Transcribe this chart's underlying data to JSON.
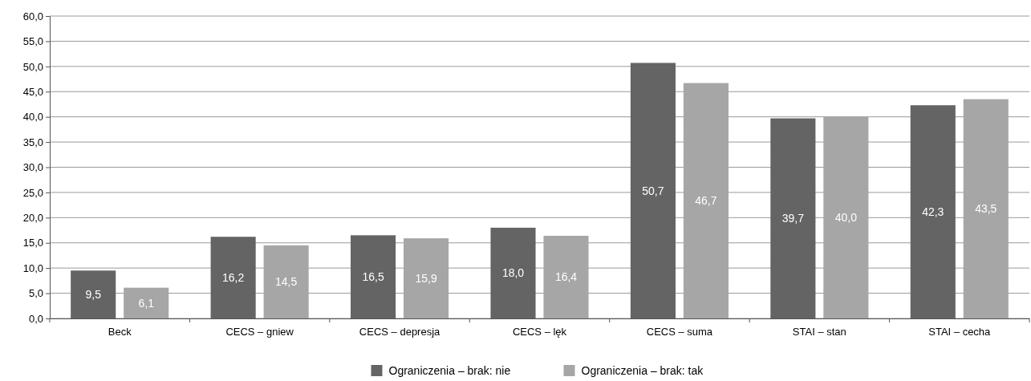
{
  "chart_data": {
    "type": "bar",
    "categories": [
      "Beck",
      "CECS – gniew",
      "CECS – depresja",
      "CECS – lęk",
      "CECS – suma",
      "STAI – stan",
      "STAI – cecha"
    ],
    "series": [
      {
        "name": "Ograniczenia – brak: nie",
        "color": "#646464",
        "values": [
          9.5,
          16.2,
          16.5,
          18.0,
          50.7,
          39.7,
          42.3
        ],
        "value_labels": [
          "9,5",
          "16,2",
          "16,5",
          "18,0",
          "50,7",
          "39,7",
          "42,3"
        ]
      },
      {
        "name": "Ograniczenia – brak: tak",
        "color": "#a6a6a6",
        "values": [
          6.1,
          14.5,
          15.9,
          16.4,
          46.7,
          40.0,
          43.5
        ],
        "value_labels": [
          "6,1",
          "14,5",
          "15,9",
          "16,4",
          "46,7",
          "40,0",
          "43,5"
        ]
      }
    ],
    "ylim": [
      0,
      60
    ],
    "yticks": [
      {
        "value": 0,
        "label": "0,0"
      },
      {
        "value": 5,
        "label": "5,0"
      },
      {
        "value": 10,
        "label": "10,0"
      },
      {
        "value": 15,
        "label": "15,0"
      },
      {
        "value": 20,
        "label": "20,0"
      },
      {
        "value": 25,
        "label": "25,0"
      },
      {
        "value": 30,
        "label": "30,0"
      },
      {
        "value": 35,
        "label": "35,0"
      },
      {
        "value": 40,
        "label": "40,0"
      },
      {
        "value": 45,
        "label": "45,0"
      },
      {
        "value": 50,
        "label": "50,0"
      },
      {
        "value": 55,
        "label": "55,0"
      },
      {
        "value": 60,
        "label": "60,0"
      }
    ],
    "grid": "y",
    "legend": "bottom"
  }
}
